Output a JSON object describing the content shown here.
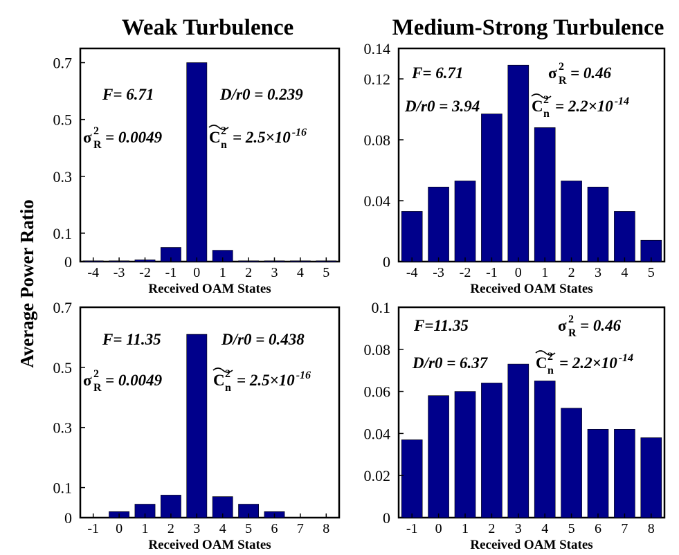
{
  "titles": {
    "left": "Weak Turbulence",
    "right": "Medium-Strong Turbulence"
  },
  "ylabel": "Average Power Ratio",
  "colors": {
    "bar": "#00008b",
    "axis": "#000000"
  },
  "chart_data": [
    {
      "type": "bar",
      "xlabel": "Received OAM States",
      "categories": [
        "-4",
        "-3",
        "-2",
        "-1",
        "0",
        "1",
        "2",
        "3",
        "4",
        "5"
      ],
      "values": [
        0.003,
        0.003,
        0.006,
        0.05,
        0.7,
        0.04,
        0.003,
        0.003,
        0.003,
        0.003
      ],
      "ylim": [
        0,
        0.75
      ],
      "yticks": [
        "0",
        "0.1",
        "0.3",
        "0.5",
        "0.7"
      ],
      "yticks_v": [
        0,
        0.1,
        0.3,
        0.5,
        0.7
      ],
      "annotations": {
        "f": "F= 6.71",
        "dr0": "D/r0 = 0.239",
        "sigma_sym": "σ",
        "sigma_sup": "2",
        "sigma_sub": "R",
        "sigma_val": "= 0.0049",
        "cn_sym": "C",
        "cn_sup": "2",
        "cn_sub": "n",
        "cn_val": "= 2.5×10",
        "cn_exp": "-16"
      }
    },
    {
      "type": "bar",
      "xlabel": "Received OAM States",
      "categories": [
        "-4",
        "-3",
        "-2",
        "-1",
        "0",
        "1",
        "2",
        "3",
        "4",
        "5"
      ],
      "values": [
        0.033,
        0.049,
        0.053,
        0.097,
        0.129,
        0.088,
        0.053,
        0.049,
        0.033,
        0.014
      ],
      "ylim": [
        0,
        0.14
      ],
      "yticks": [
        "0",
        "0.04",
        "0.08",
        "0.12",
        "0.14"
      ],
      "yticks_v": [
        0,
        0.04,
        0.08,
        0.12,
        0.14
      ],
      "annotations": {
        "f": "F= 6.71",
        "dr0": "D/r0 = 3.94",
        "sigma_sym": "σ",
        "sigma_sup": "2",
        "sigma_sub": "R",
        "sigma_val": "= 0.46",
        "cn_sym": "C",
        "cn_sup": "2",
        "cn_sub": "n",
        "cn_val": "= 2.2×10",
        "cn_exp": "-14"
      }
    },
    {
      "type": "bar",
      "xlabel": "Received OAM States",
      "categories": [
        "-1",
        "0",
        "1",
        "2",
        "3",
        "4",
        "5",
        "6",
        "7",
        "8"
      ],
      "values": [
        0.0,
        0.02,
        0.045,
        0.075,
        0.61,
        0.07,
        0.045,
        0.02,
        0.0,
        0.0
      ],
      "ylim": [
        0,
        0.7
      ],
      "yticks": [
        "0",
        "0.1",
        "0.3",
        "0.5",
        "0.7"
      ],
      "yticks_v": [
        0,
        0.1,
        0.3,
        0.5,
        0.7
      ],
      "annotations": {
        "f": "F= 11.35",
        "dr0": "D/r0 = 0.438",
        "sigma_sym": "σ",
        "sigma_sup": "2",
        "sigma_sub": "R",
        "sigma_val": "= 0.0049",
        "cn_sym": "C",
        "cn_sup": "2",
        "cn_sub": "n",
        "cn_val": "= 2.5×10",
        "cn_exp": "-16"
      }
    },
    {
      "type": "bar",
      "xlabel": "Received OAM States",
      "categories": [
        "-1",
        "0",
        "1",
        "2",
        "3",
        "4",
        "5",
        "6",
        "7",
        "8"
      ],
      "values": [
        0.037,
        0.058,
        0.06,
        0.064,
        0.073,
        0.065,
        0.052,
        0.042,
        0.042,
        0.038
      ],
      "ylim": [
        0,
        0.1
      ],
      "yticks": [
        "0",
        "0.02",
        "0.04",
        "0.06",
        "0.08",
        "0.1"
      ],
      "yticks_v": [
        0,
        0.02,
        0.04,
        0.06,
        0.08,
        0.1
      ],
      "annotations": {
        "f": "F=11.35",
        "dr0": "D/r0 = 6.37",
        "sigma_sym": "σ",
        "sigma_sup": "2",
        "sigma_sub": "R",
        "sigma_val": "= 0.46",
        "cn_sym": "C",
        "cn_sup": "2",
        "cn_sub": "n",
        "cn_val": "= 2.2×10",
        "cn_exp": "-14"
      }
    }
  ]
}
